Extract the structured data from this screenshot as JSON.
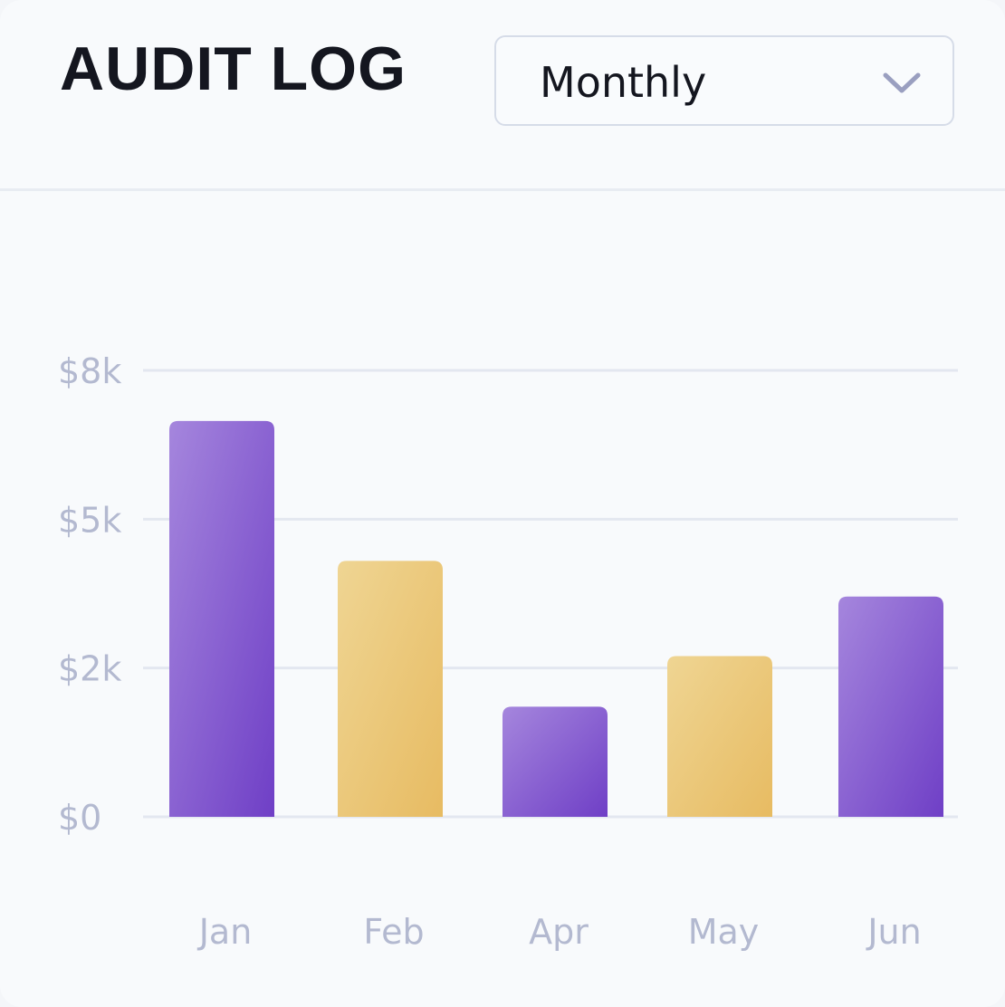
{
  "header": {
    "title": "AUDIT LOG",
    "period_select": {
      "value": "Monthly",
      "icon": "chevron-down-icon"
    }
  },
  "chart_data": {
    "type": "bar",
    "categories": [
      "Jan",
      "Feb",
      "Apr",
      "May",
      "Jun"
    ],
    "values": [
      6650,
      4300,
      1850,
      2700,
      3700
    ],
    "y_ticks": [
      {
        "value": 0,
        "label": "$0"
      },
      {
        "value": 2500,
        "label": "$2k"
      },
      {
        "value": 5000,
        "label": "$5k"
      },
      {
        "value": 7500,
        "label": "$8k"
      }
    ],
    "ylim": [
      0,
      7500
    ],
    "grid": true,
    "title": "",
    "xlabel": "",
    "ylabel": "",
    "colors": {
      "purple_light": "#a586dd",
      "purple_dark": "#6f3fc6",
      "gold_light": "#efd593",
      "gold_dark": "#e7bb62",
      "grid": "#e3e7f0",
      "tick": "#b3b9d0"
    },
    "bar_colors": [
      "purple",
      "gold",
      "purple",
      "gold",
      "purple"
    ]
  }
}
